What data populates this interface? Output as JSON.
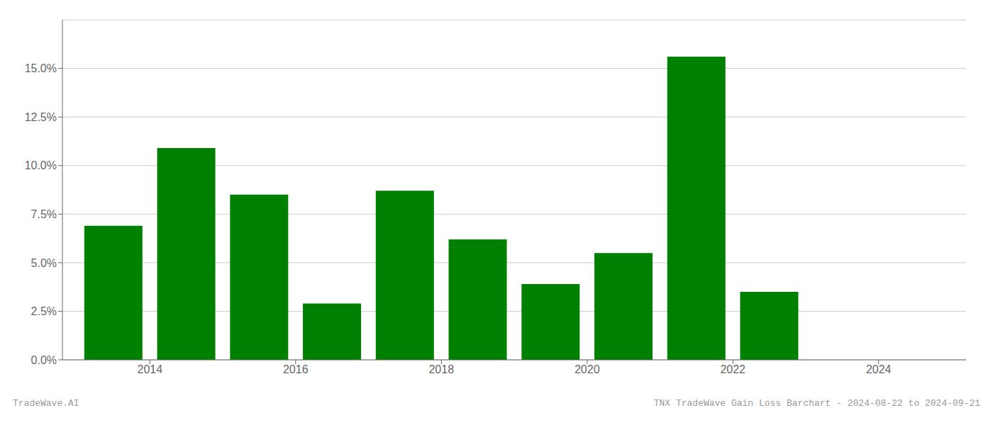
{
  "chart_data": {
    "type": "bar",
    "x": [
      2013.5,
      2014.5,
      2015.5,
      2016.5,
      2017.5,
      2018.5,
      2019.5,
      2020.5,
      2021.5,
      2022.5,
      2023.5
    ],
    "values": [
      0.069,
      0.109,
      0.085,
      0.029,
      0.087,
      0.062,
      0.039,
      0.055,
      0.156,
      0.035,
      0.0
    ],
    "color": "#008000",
    "xlim": [
      2012.8,
      2025.2
    ],
    "xticks": [
      2014,
      2016,
      2018,
      2020,
      2022,
      2024
    ],
    "ylim": [
      0,
      0.175
    ],
    "yticks": [
      {
        "value": 0.0,
        "label": "0.0%"
      },
      {
        "value": 0.025,
        "label": "2.5%"
      },
      {
        "value": 0.05,
        "label": "5.0%"
      },
      {
        "value": 0.075,
        "label": "7.5%"
      },
      {
        "value": 0.1,
        "label": "10.0%"
      },
      {
        "value": 0.125,
        "label": "12.5%"
      },
      {
        "value": 0.15,
        "label": "15.0%"
      }
    ],
    "grid": true,
    "annotations": [
      "TradeWave.AI",
      "TNX TradeWave Gain Loss Barchart - 2024-08-22 to 2024-09-21"
    ]
  }
}
